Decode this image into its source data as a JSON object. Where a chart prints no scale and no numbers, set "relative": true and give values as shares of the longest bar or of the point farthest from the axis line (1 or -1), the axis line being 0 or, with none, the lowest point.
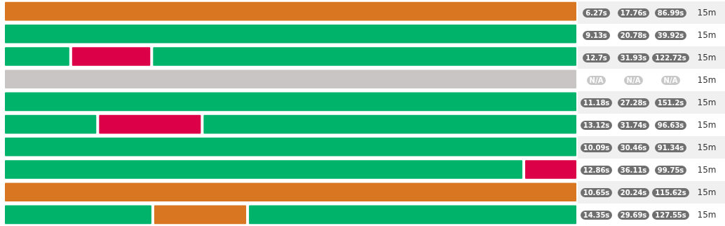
{
  "chart_data": [
    {
      "type": "bar",
      "orientation": "horizontal",
      "stacked": true,
      "relative": true,
      "categories": [
        null,
        null,
        null,
        null,
        null,
        null,
        null,
        null,
        null,
        null
      ],
      "series": [
        {
          "values": [
            1,
            1,
            0.117,
            1,
            1,
            0.164,
            1,
            0.906,
            1,
            0.26
          ],
          "colors": [
            "#d97621",
            "#00b36b",
            "#00b36b",
            "#c9c5c5",
            "#00b36b",
            "#00b36b",
            "#00b36b",
            "#00b36b",
            "#d97621",
            "#00b36b"
          ]
        },
        {
          "values": [
            null,
            null,
            0.141,
            null,
            null,
            0.182,
            null,
            0.094,
            null,
            0.165
          ],
          "colors": [
            null,
            null,
            "#dc0048",
            null,
            null,
            "#dc0048",
            null,
            "#dc0048",
            null,
            "#d97621"
          ]
        },
        {
          "values": [
            null,
            null,
            0.742,
            null,
            null,
            0.654,
            null,
            null,
            null,
            0.575
          ],
          "colors": [
            null,
            null,
            "#00b36b",
            null,
            null,
            "#00b36b",
            null,
            null,
            null,
            "#00b36b"
          ]
        }
      ]
    },
    {
      "type": "other",
      "annotations": [
        "6.27s",
        "17.76s",
        "86.99s",
        "15m",
        "9.13s",
        "20.78s",
        "39.92s",
        "15m",
        "12.7s",
        "31.93s",
        "122.72s",
        "15m",
        "N/A",
        "N/A",
        "N/A",
        "15m",
        "11.18s",
        "27.28s",
        "151.2s",
        "15m",
        "13.12s",
        "31.74s",
        "96.63s",
        "15m",
        "10.09s",
        "30.46s",
        "91.34s",
        "15m",
        "12.86s",
        "36.11s",
        "99.75s",
        "15m",
        "10.65s",
        "20.24s",
        "115.62s",
        "15m",
        "14.35s",
        "29.69s",
        "127.55s",
        "15m"
      ],
      "colors": [
        "#6f6f6f",
        "#6f6f6f",
        "#6f6f6f",
        null,
        "#6f6f6f",
        "#6f6f6f",
        "#6f6f6f",
        null,
        "#6f6f6f",
        "#6f6f6f",
        "#6f6f6f",
        null,
        "#c8c8c8",
        "#c8c8c8",
        "#c8c8c8",
        null,
        "#6f6f6f",
        "#6f6f6f",
        "#6f6f6f",
        null,
        "#6f6f6f",
        "#6f6f6f",
        "#6f6f6f",
        null,
        "#6f6f6f",
        "#6f6f6f",
        "#6f6f6f",
        null,
        "#6f6f6f",
        "#6f6f6f",
        "#6f6f6f",
        null,
        "#6f6f6f",
        "#6f6f6f",
        "#6f6f6f",
        null,
        "#6f6f6f",
        "#6f6f6f",
        "#6f6f6f",
        null
      ]
    }
  ]
}
